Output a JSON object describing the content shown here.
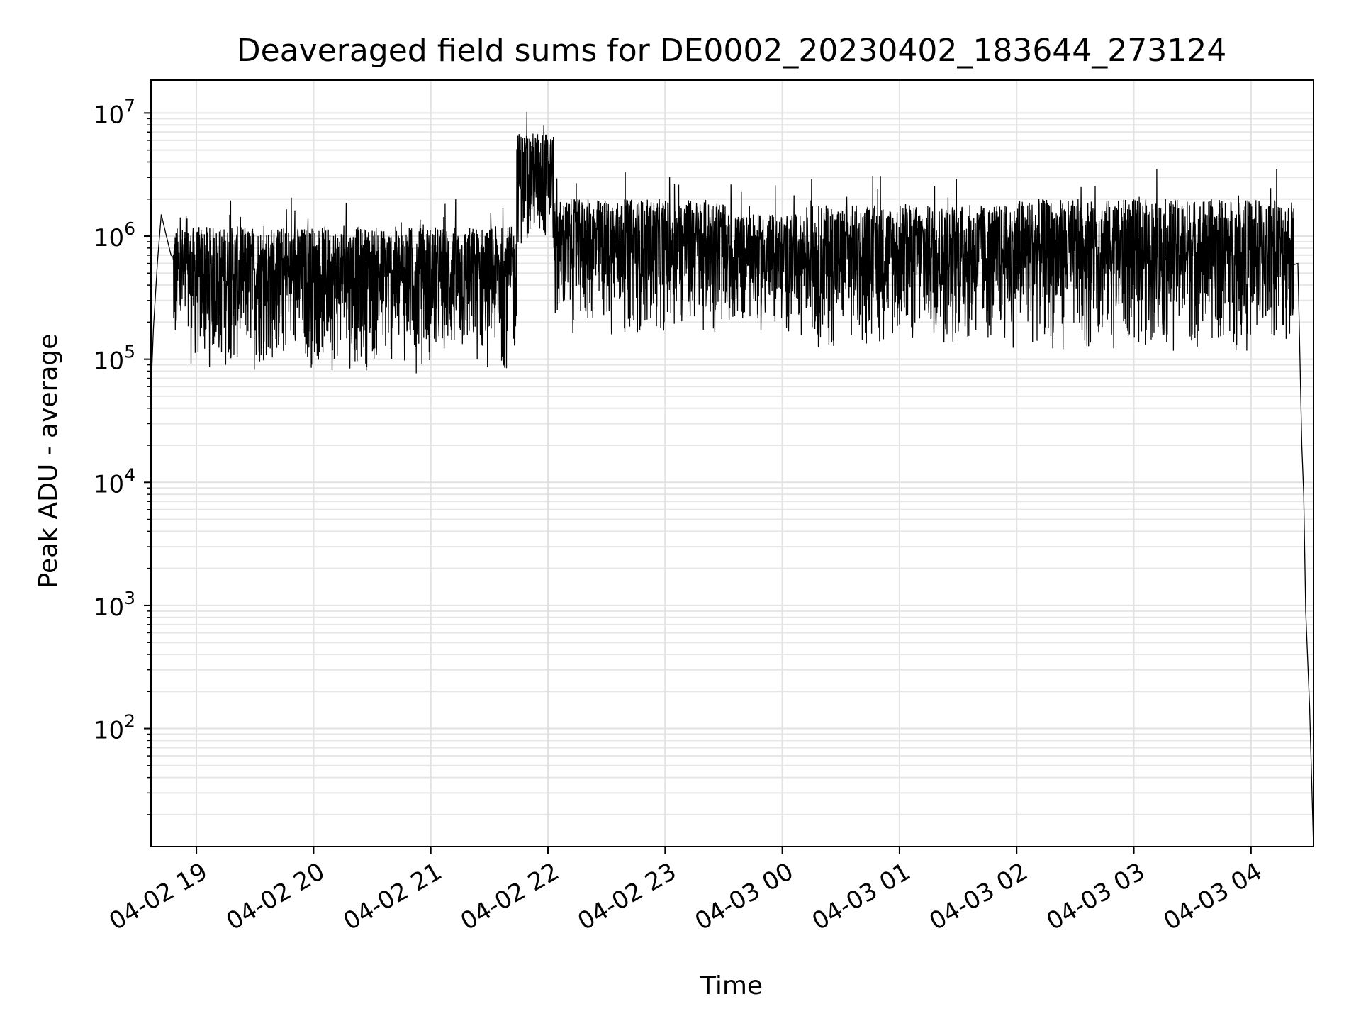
{
  "chart_data": {
    "type": "line",
    "title": "Deaveraged field sums for DE0002_20230402_183644_273124",
    "xlabel": "Time",
    "ylabel": "Peak ADU - average",
    "yscale": "log",
    "grid": true,
    "xlim": [
      "2023-04-02 18:36:44",
      "2023-04-03 04:32:00"
    ],
    "ylim": [
      11,
      18500000
    ],
    "x_ticks": [
      {
        "time": "2023-04-02 19:00",
        "label": "04-02 19"
      },
      {
        "time": "2023-04-02 20:00",
        "label": "04-02 20"
      },
      {
        "time": "2023-04-02 21:00",
        "label": "04-02 21"
      },
      {
        "time": "2023-04-02 22:00",
        "label": "04-02 22"
      },
      {
        "time": "2023-04-02 23:00",
        "label": "04-02 23"
      },
      {
        "time": "2023-04-03 00:00",
        "label": "04-03 00"
      },
      {
        "time": "2023-04-03 01:00",
        "label": "04-03 01"
      },
      {
        "time": "2023-04-03 02:00",
        "label": "04-03 02"
      },
      {
        "time": "2023-04-03 03:00",
        "label": "04-03 03"
      },
      {
        "time": "2023-04-03 04:00",
        "label": "04-03 04"
      }
    ],
    "y_ticks": [
      {
        "value": 100,
        "base": "10",
        "exp": "2"
      },
      {
        "value": 1000,
        "base": "10",
        "exp": "3"
      },
      {
        "value": 10000,
        "base": "10",
        "exp": "4"
      },
      {
        "value": 100000,
        "base": "10",
        "exp": "5"
      },
      {
        "value": 1000000,
        "base": "10",
        "exp": "6"
      },
      {
        "value": 10000000,
        "base": "10",
        "exp": "7"
      }
    ],
    "series": [
      {
        "color": "#000000",
        "points": [
          [
            "2023-04-02 18:36:44",
            55000
          ],
          [
            "2023-04-02 18:38",
            180000
          ],
          [
            "2023-04-02 18:40",
            600000
          ],
          [
            "2023-04-02 18:42",
            1500000
          ],
          [
            "2023-04-02 18:44",
            1100000
          ],
          [
            "2023-04-02 18:47",
            700000
          ],
          [
            "2023-04-02 18:50",
            150000
          ],
          [
            "2023-04-02 19:00",
            100000
          ],
          [
            "2023-04-02 19:30",
            90000
          ],
          [
            "2023-04-02 20:00",
            100000
          ],
          [
            "2023-04-02 20:30",
            100000
          ],
          [
            "2023-04-02 21:00",
            100000
          ],
          [
            "2023-04-02 21:30",
            80000
          ],
          [
            "2023-04-02 21:43",
            80000
          ],
          [
            "2023-04-02 21:46",
            1000000
          ],
          [
            "2023-04-02 21:48",
            10000000
          ],
          [
            "2023-04-02 21:52",
            4000000
          ],
          [
            "2023-04-02 22:00",
            2000000
          ],
          [
            "2023-04-02 22:05",
            800000
          ],
          [
            "2023-04-02 22:30",
            800000
          ],
          [
            "2023-04-02 23:00",
            900000
          ],
          [
            "2023-04-03 00:00",
            800000
          ],
          [
            "2023-04-03 01:00",
            1000000
          ],
          [
            "2023-04-03 02:00",
            1000000
          ],
          [
            "2023-04-03 03:00",
            1000000
          ],
          [
            "2023-04-03 04:00",
            1000000
          ],
          [
            "2023-04-03 04:22",
            1200000
          ],
          [
            "2023-04-03 04:24",
            600000
          ],
          [
            "2023-04-03 04:26",
            20000
          ],
          [
            "2023-04-03 04:27",
            8000
          ],
          [
            "2023-04-03 04:28",
            900
          ],
          [
            "2023-04-03 04:30",
            150
          ],
          [
            "2023-04-03 04:32",
            11
          ]
        ]
      }
    ],
    "envelope": [
      {
        "start": "2023-04-02 18:48",
        "end": "2023-04-02 21:44",
        "low": 75000,
        "high": 1200000
      },
      {
        "start": "2023-04-02 21:44",
        "end": "2023-04-02 22:03",
        "low": 700000,
        "high": 7000000
      },
      {
        "start": "2023-04-02 22:03",
        "end": "2023-04-02 23:30",
        "low": 150000,
        "high": 2000000
      },
      {
        "start": "2023-04-02 23:30",
        "end": "2023-04-03 00:15",
        "low": 150000,
        "high": 1500000
      },
      {
        "start": "2023-04-03 00:15",
        "end": "2023-04-03 02:00",
        "low": 110000,
        "high": 1800000
      },
      {
        "start": "2023-04-03 02:00",
        "end": "2023-04-03 04:22",
        "low": 110000,
        "high": 2000000
      }
    ]
  }
}
